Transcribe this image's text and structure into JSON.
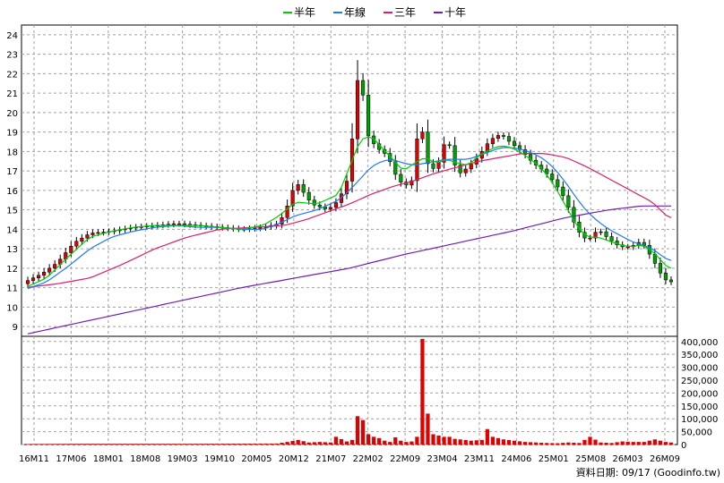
{
  "chart_data": {
    "type": "candlestick-volume",
    "legend": [
      {
        "name": "半年",
        "color": "#00cc00"
      },
      {
        "name": "年線",
        "color": "#1e78ff"
      },
      {
        "name": "三年",
        "color": "#dc1e6e"
      },
      {
        "name": "十年",
        "color": "#6e1eb4"
      }
    ],
    "price_axis": {
      "min": 8.5,
      "max": 24.5,
      "ticks": [
        "9",
        "10",
        "11",
        "12",
        "13",
        "14",
        "15",
        "16",
        "17",
        "18",
        "19",
        "20",
        "21",
        "22",
        "23",
        "24"
      ]
    },
    "volume_axis": {
      "min": 0,
      "max": 420000,
      "ticks": [
        "0",
        "50,000",
        "100,000",
        "150,000",
        "200,000",
        "250,000",
        "300,000",
        "350,000",
        "400,000"
      ]
    },
    "x_ticks": [
      "16M11",
      "17M06",
      "18M01",
      "18M08",
      "19M03",
      "19M10",
      "20M05",
      "20M12",
      "21M07",
      "22M02",
      "22M09",
      "23M04",
      "23M11",
      "24M06",
      "25M01",
      "25M08",
      "26M03",
      "26M09"
    ],
    "n_months": 120,
    "close_anchors": [
      [
        0,
        11.3
      ],
      [
        3,
        11.7
      ],
      [
        6,
        12.3
      ],
      [
        9,
        13.3
      ],
      [
        12,
        13.8
      ],
      [
        16,
        13.9
      ],
      [
        20,
        14.1
      ],
      [
        24,
        14.2
      ],
      [
        28,
        14.3
      ],
      [
        32,
        14.2
      ],
      [
        36,
        14.1
      ],
      [
        40,
        14.0
      ],
      [
        44,
        14.1
      ],
      [
        47,
        14.3
      ],
      [
        49,
        15.5
      ],
      [
        50,
        16.5
      ],
      [
        53,
        15.3
      ],
      [
        56,
        15.0
      ],
      [
        58,
        15.5
      ],
      [
        60,
        16.8
      ],
      [
        61,
        20.5
      ],
      [
        62,
        22.8
      ],
      [
        63,
        19.0
      ],
      [
        65,
        18.2
      ],
      [
        67,
        17.8
      ],
      [
        69,
        16.5
      ],
      [
        71,
        16.2
      ],
      [
        72,
        16.8
      ],
      [
        73,
        20.5
      ],
      [
        74,
        17.5
      ],
      [
        76,
        17.0
      ],
      [
        78,
        18.8
      ],
      [
        80,
        16.8
      ],
      [
        82,
        17.2
      ],
      [
        84,
        17.8
      ],
      [
        86,
        18.6
      ],
      [
        88,
        18.9
      ],
      [
        90,
        18.4
      ],
      [
        92,
        18.0
      ],
      [
        94,
        17.4
      ],
      [
        96,
        17.0
      ],
      [
        98,
        16.4
      ],
      [
        100,
        15.5
      ],
      [
        102,
        14.0
      ],
      [
        104,
        13.4
      ],
      [
        106,
        14.0
      ],
      [
        108,
        13.5
      ],
      [
        110,
        13.1
      ],
      [
        112,
        13.1
      ],
      [
        114,
        13.4
      ],
      [
        116,
        12.5
      ],
      [
        118,
        11.5
      ],
      [
        119,
        11.3
      ]
    ],
    "ma_half_anchors": [
      [
        0,
        11.0
      ],
      [
        4,
        11.5
      ],
      [
        8,
        12.6
      ],
      [
        12,
        13.6
      ],
      [
        16,
        13.9
      ],
      [
        20,
        14.1
      ],
      [
        24,
        14.2
      ],
      [
        28,
        14.2
      ],
      [
        32,
        14.2
      ],
      [
        36,
        14.1
      ],
      [
        40,
        14.0
      ],
      [
        44,
        14.2
      ],
      [
        47,
        14.7
      ],
      [
        50,
        15.4
      ],
      [
        54,
        15.3
      ],
      [
        58,
        15.8
      ],
      [
        60,
        17.2
      ],
      [
        62,
        18.6
      ],
      [
        64,
        18.8
      ],
      [
        66,
        18.2
      ],
      [
        68,
        17.6
      ],
      [
        70,
        17.0
      ],
      [
        72,
        17.4
      ],
      [
        74,
        17.7
      ],
      [
        76,
        17.4
      ],
      [
        78,
        17.6
      ],
      [
        80,
        17.4
      ],
      [
        82,
        17.3
      ],
      [
        84,
        17.8
      ],
      [
        86,
        18.1
      ],
      [
        88,
        18.3
      ],
      [
        90,
        18.2
      ],
      [
        92,
        17.9
      ],
      [
        94,
        17.5
      ],
      [
        96,
        17.0
      ],
      [
        98,
        16.2
      ],
      [
        100,
        15.2
      ],
      [
        102,
        14.2
      ],
      [
        104,
        13.6
      ],
      [
        106,
        13.6
      ],
      [
        108,
        13.4
      ],
      [
        110,
        13.2
      ],
      [
        112,
        13.1
      ],
      [
        114,
        13.2
      ],
      [
        116,
        12.9
      ],
      [
        118,
        12.3
      ],
      [
        119,
        12.0
      ]
    ],
    "ma_year_anchors": [
      [
        0,
        10.9
      ],
      [
        4,
        11.3
      ],
      [
        8,
        12.1
      ],
      [
        12,
        13.0
      ],
      [
        16,
        13.6
      ],
      [
        20,
        13.9
      ],
      [
        24,
        14.1
      ],
      [
        28,
        14.2
      ],
      [
        32,
        14.1
      ],
      [
        36,
        14.1
      ],
      [
        40,
        14.0
      ],
      [
        44,
        14.0
      ],
      [
        47,
        14.3
      ],
      [
        50,
        14.7
      ],
      [
        54,
        15.0
      ],
      [
        58,
        15.5
      ],
      [
        60,
        16.0
      ],
      [
        62,
        16.6
      ],
      [
        64,
        17.2
      ],
      [
        66,
        17.5
      ],
      [
        68,
        17.6
      ],
      [
        70,
        17.4
      ],
      [
        72,
        17.3
      ],
      [
        74,
        17.4
      ],
      [
        76,
        17.5
      ],
      [
        78,
        17.6
      ],
      [
        80,
        17.6
      ],
      [
        82,
        17.6
      ],
      [
        84,
        17.8
      ],
      [
        86,
        18.0
      ],
      [
        88,
        18.2
      ],
      [
        90,
        18.2
      ],
      [
        92,
        18.1
      ],
      [
        94,
        17.9
      ],
      [
        96,
        17.6
      ],
      [
        98,
        17.1
      ],
      [
        100,
        16.4
      ],
      [
        102,
        15.6
      ],
      [
        104,
        14.9
      ],
      [
        106,
        14.4
      ],
      [
        108,
        14.0
      ],
      [
        110,
        13.7
      ],
      [
        112,
        13.4
      ],
      [
        114,
        13.2
      ],
      [
        116,
        13.0
      ],
      [
        118,
        12.6
      ],
      [
        119,
        12.4
      ]
    ],
    "ma_3yr_anchors": [
      [
        0,
        11.0
      ],
      [
        6,
        11.2
      ],
      [
        12,
        11.5
      ],
      [
        18,
        12.2
      ],
      [
        24,
        13.0
      ],
      [
        30,
        13.6
      ],
      [
        36,
        14.0
      ],
      [
        42,
        14.1
      ],
      [
        48,
        14.2
      ],
      [
        52,
        14.5
      ],
      [
        56,
        14.9
      ],
      [
        60,
        15.3
      ],
      [
        64,
        15.8
      ],
      [
        68,
        16.2
      ],
      [
        72,
        16.5
      ],
      [
        76,
        16.9
      ],
      [
        80,
        17.2
      ],
      [
        84,
        17.5
      ],
      [
        88,
        17.7
      ],
      [
        92,
        17.9
      ],
      [
        96,
        17.9
      ],
      [
        100,
        17.7
      ],
      [
        104,
        17.2
      ],
      [
        108,
        16.6
      ],
      [
        112,
        16.0
      ],
      [
        116,
        15.4
      ],
      [
        119,
        14.6
      ]
    ],
    "ma_10yr_anchors": [
      [
        0,
        8.6
      ],
      [
        10,
        9.2
      ],
      [
        20,
        9.8
      ],
      [
        30,
        10.4
      ],
      [
        40,
        11.0
      ],
      [
        50,
        11.5
      ],
      [
        60,
        12.0
      ],
      [
        70,
        12.7
      ],
      [
        80,
        13.3
      ],
      [
        90,
        13.9
      ],
      [
        100,
        14.6
      ],
      [
        108,
        15.0
      ],
      [
        114,
        15.2
      ],
      [
        119,
        15.2
      ]
    ],
    "volume_anchors": [
      [
        0,
        2000
      ],
      [
        10,
        3000
      ],
      [
        20,
        3000
      ],
      [
        30,
        3000
      ],
      [
        40,
        3500
      ],
      [
        46,
        4000
      ],
      [
        48,
        10000
      ],
      [
        50,
        18000
      ],
      [
        52,
        8000
      ],
      [
        54,
        10000
      ],
      [
        56,
        8000
      ],
      [
        57,
        30000
      ],
      [
        59,
        12000
      ],
      [
        60,
        18000
      ],
      [
        61,
        110000
      ],
      [
        62,
        95000
      ],
      [
        63,
        40000
      ],
      [
        64,
        30000
      ],
      [
        65,
        25000
      ],
      [
        66,
        15000
      ],
      [
        67,
        10000
      ],
      [
        68,
        28000
      ],
      [
        69,
        15000
      ],
      [
        70,
        10000
      ],
      [
        71,
        12000
      ],
      [
        72,
        30000
      ],
      [
        73,
        410000
      ],
      [
        74,
        120000
      ],
      [
        75,
        40000
      ],
      [
        76,
        35000
      ],
      [
        77,
        30000
      ],
      [
        78,
        30000
      ],
      [
        79,
        22000
      ],
      [
        80,
        20000
      ],
      [
        82,
        15000
      ],
      [
        84,
        18000
      ],
      [
        85,
        60000
      ],
      [
        86,
        30000
      ],
      [
        88,
        20000
      ],
      [
        90,
        15000
      ],
      [
        92,
        10000
      ],
      [
        94,
        8000
      ],
      [
        96,
        6000
      ],
      [
        98,
        5000
      ],
      [
        100,
        8000
      ],
      [
        102,
        6000
      ],
      [
        104,
        30000
      ],
      [
        106,
        8000
      ],
      [
        108,
        6000
      ],
      [
        110,
        12000
      ],
      [
        112,
        10000
      ],
      [
        114,
        10000
      ],
      [
        116,
        20000
      ],
      [
        118,
        10000
      ],
      [
        119,
        8000
      ]
    ],
    "source_label": "資料日期: 09/17  (Goodinfo.tw)"
  }
}
